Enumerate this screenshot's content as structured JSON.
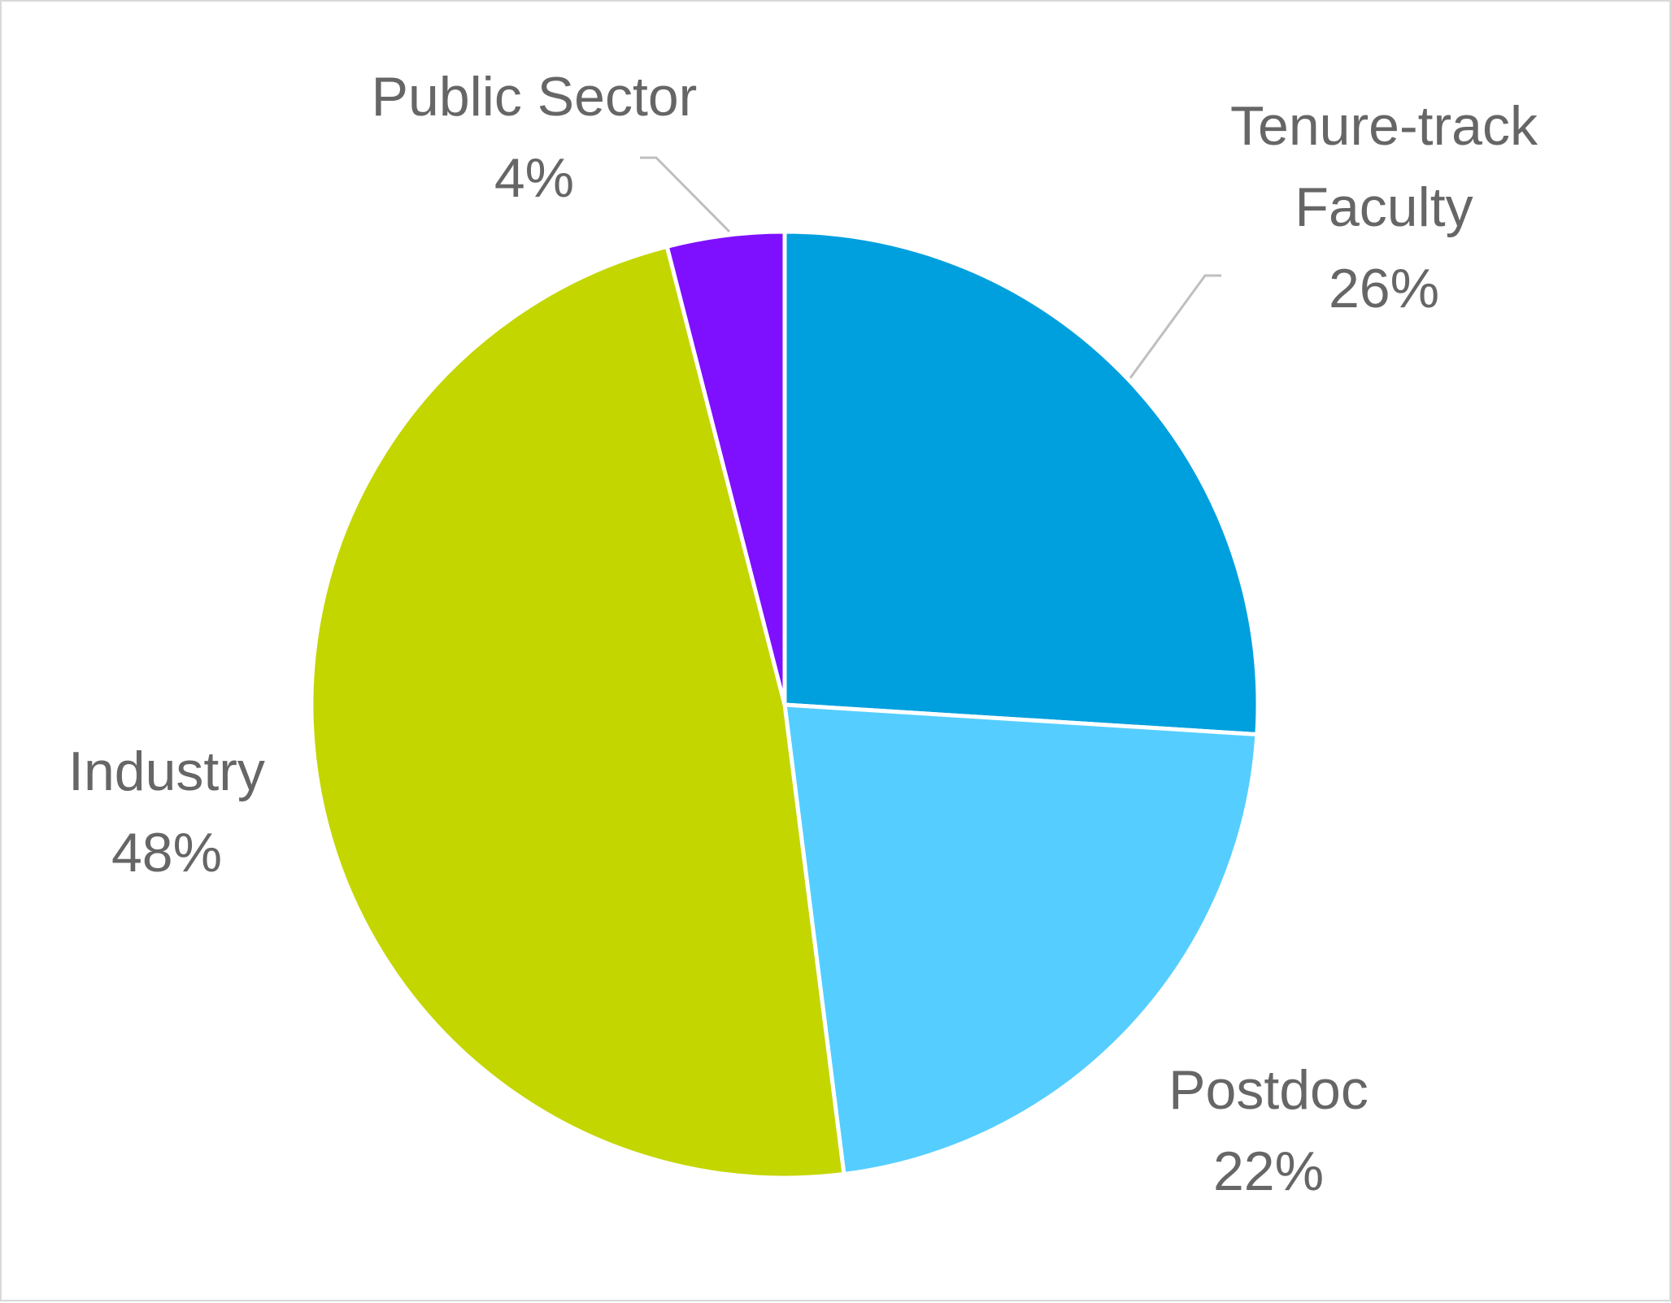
{
  "chart_data": {
    "type": "pie",
    "title": "",
    "start_angle_deg": 0,
    "direction": "clockwise",
    "slice_border_color": "#ffffff",
    "legend": "none",
    "slices": [
      {
        "label": "Tenure-track Faculty",
        "label_lines": [
          "Tenure-track",
          "Faculty",
          "26%"
        ],
        "value": 26,
        "percent_label": "26%",
        "color": "#00a0df",
        "leader_line": true
      },
      {
        "label": "Postdoc",
        "label_lines": [
          "Postdoc",
          "22%"
        ],
        "value": 22,
        "percent_label": "22%",
        "color": "#55ceff",
        "leader_line": false
      },
      {
        "label": "Industry",
        "label_lines": [
          "Industry",
          "48%"
        ],
        "value": 48,
        "percent_label": "48%",
        "color": "#c4d600",
        "leader_line": false
      },
      {
        "label": "Public Sector",
        "label_lines": [
          "Public Sector",
          "4%"
        ],
        "value": 4,
        "percent_label": "4%",
        "color": "#7f0fff",
        "leader_line": true
      }
    ]
  }
}
